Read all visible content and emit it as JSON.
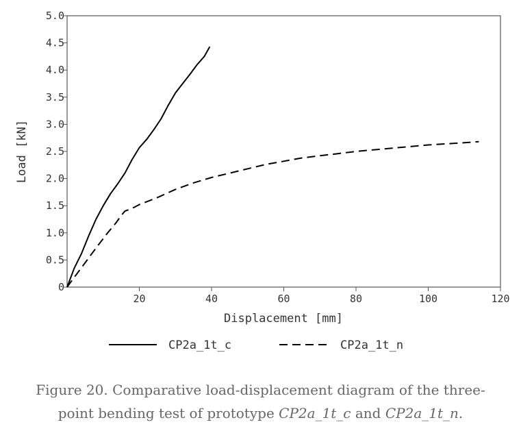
{
  "chart_data": {
    "type": "line",
    "xlabel": "Displacement [mm]",
    "ylabel": "Load [kN]",
    "xlim": [
      0,
      120
    ],
    "ylim": [
      0,
      5
    ],
    "x_ticks": [
      20,
      40,
      60,
      80,
      100,
      120
    ],
    "x_tick_labels": [
      "20",
      "40",
      "60",
      "80",
      "100",
      "120"
    ],
    "y_ticks": [
      0,
      0.5,
      1.0,
      1.5,
      2.0,
      2.5,
      3.0,
      3.5,
      4.0,
      4.5,
      5.0
    ],
    "y_tick_labels": [
      "0",
      "0.5",
      "1.0",
      "1.5",
      "2.0",
      "2.5",
      "3.0",
      "3.5",
      "4.0",
      "4.5",
      "5.0"
    ],
    "grid": false,
    "legend_position": "bottom",
    "series": [
      {
        "name": "CP2a_1t_c",
        "style": "solid",
        "color": "#000000",
        "x": [
          0,
          2,
          4,
          6,
          8,
          10,
          12,
          14,
          16,
          18,
          20,
          22,
          24,
          26,
          28,
          30,
          32,
          34,
          36,
          38,
          39.5
        ],
        "y": [
          0,
          0.35,
          0.62,
          0.95,
          1.25,
          1.5,
          1.72,
          1.9,
          2.1,
          2.35,
          2.57,
          2.72,
          2.9,
          3.1,
          3.35,
          3.58,
          3.75,
          3.92,
          4.1,
          4.25,
          4.43
        ]
      },
      {
        "name": "CP2a_1t_n",
        "style": "dashed",
        "color": "#000000",
        "x": [
          0,
          2,
          5,
          8,
          11,
          13.5,
          15,
          16,
          18,
          20,
          25,
          30,
          35,
          40,
          45,
          50,
          55,
          60,
          65,
          70,
          75,
          80,
          85,
          90,
          95,
          100,
          105,
          110,
          114
        ],
        "y": [
          0,
          0.18,
          0.45,
          0.72,
          0.98,
          1.18,
          1.32,
          1.4,
          1.45,
          1.52,
          1.65,
          1.8,
          1.92,
          2.02,
          2.1,
          2.18,
          2.26,
          2.32,
          2.38,
          2.42,
          2.46,
          2.5,
          2.53,
          2.56,
          2.59,
          2.62,
          2.64,
          2.66,
          2.68
        ]
      }
    ]
  },
  "caption": {
    "line1": "Figure 20. Comparative load-displacement diagram of the three-",
    "line2_prefix": "point bending test of prototype ",
    "series_c": "CP2a_1t_c",
    "connector": " and ",
    "series_n": "CP2a_1t_n",
    "line2_suffix": "."
  }
}
